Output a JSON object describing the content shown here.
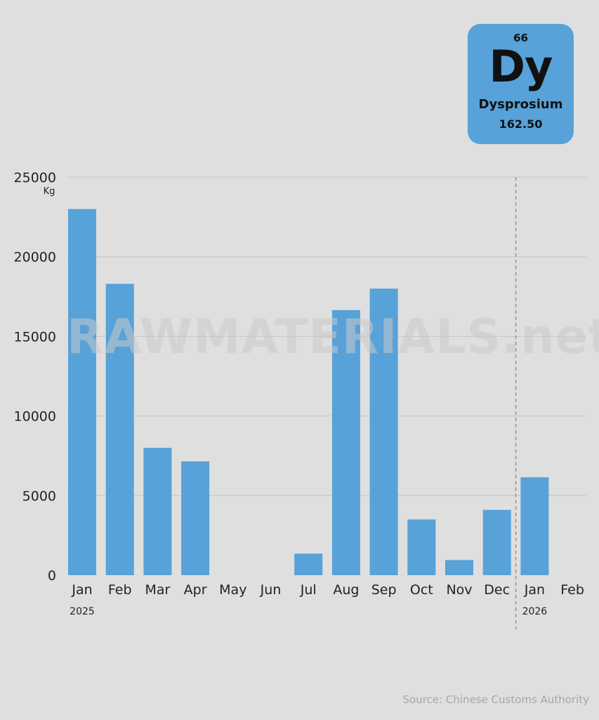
{
  "element": {
    "number": "66",
    "symbol": "Dy",
    "name": "Dysprosium",
    "mass": "162.50"
  },
  "watermark": "RAWMATERIALS.net",
  "source": "Source: Chinese Customs Authority",
  "colors": {
    "bar": "#57a2d8",
    "background": "#dfdfdf",
    "grid": "#c4c4c4",
    "tile": "#57a2d8"
  },
  "chart_data": {
    "type": "bar",
    "unit_label": "Kg",
    "categories": [
      "Jan",
      "Feb",
      "Mar",
      "Apr",
      "May",
      "Jun",
      "Jul",
      "Aug",
      "Sep",
      "Oct",
      "Nov",
      "Dec",
      "Jan",
      "Feb"
    ],
    "year_labels": [
      {
        "category_index": 0,
        "label": "2025"
      },
      {
        "category_index": 12,
        "label": "2026"
      }
    ],
    "year_divider_after_index": 11,
    "values": [
      23000,
      18300,
      8000,
      7150,
      0,
      0,
      1350,
      16650,
      18000,
      3500,
      950,
      4100,
      6150,
      0
    ],
    "y_ticks": [
      "0",
      "5000",
      "10000",
      "15000",
      "20000",
      "25000"
    ],
    "ylim": [
      0,
      25000
    ],
    "grid": true
  }
}
